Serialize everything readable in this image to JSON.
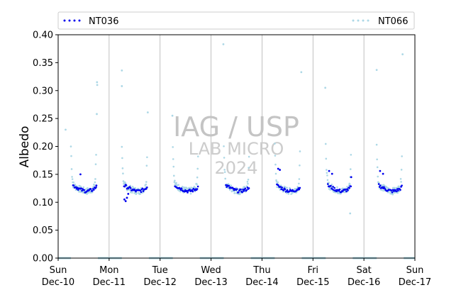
{
  "chart_data": {
    "type": "scatter",
    "ylabel": "Albedo",
    "ylim": [
      0,
      0.4
    ],
    "yticks": [
      0.0,
      0.05,
      0.1,
      0.15,
      0.2,
      0.25,
      0.3,
      0.35,
      0.4
    ],
    "ytick_labels": [
      "0.00",
      "0.05",
      "0.10",
      "0.15",
      "0.20",
      "0.25",
      "0.30",
      "0.35",
      "0.40"
    ],
    "xlim": [
      "2018-12-10",
      "2018-12-17"
    ],
    "xticks": [
      {
        "day": "Sun",
        "date": "Dec-10"
      },
      {
        "day": "Mon",
        "date": "Dec-11"
      },
      {
        "day": "Tue",
        "date": "Dec-12"
      },
      {
        "day": "Wed",
        "date": "Dec-13"
      },
      {
        "day": "Thu",
        "date": "Dec-14"
      },
      {
        "day": "Fri",
        "date": "Dec-15"
      },
      {
        "day": "Sat",
        "date": "Dec-16"
      },
      {
        "day": "Sun",
        "date": "Dec-17"
      }
    ],
    "grid": "vertical at day boundaries",
    "legend": "top, spanning plot width",
    "series": [
      {
        "name": "NT036",
        "color": "#0000ee",
        "daily_profile": [
          {
            "hour": 7.0,
            "albedo": 0.13
          },
          {
            "hour": 8.0,
            "albedo": 0.128
          },
          {
            "hour": 9.0,
            "albedo": 0.126
          },
          {
            "hour": 10.0,
            "albedo": 0.124
          },
          {
            "hour": 11.0,
            "albedo": 0.122
          },
          {
            "hour": 12.0,
            "albedo": 0.121
          },
          {
            "hour": 13.0,
            "albedo": 0.12
          },
          {
            "hour": 14.0,
            "albedo": 0.12
          },
          {
            "hour": 15.0,
            "albedo": 0.121
          },
          {
            "hour": 16.0,
            "albedo": 0.122
          },
          {
            "hour": 17.0,
            "albedo": 0.124
          },
          {
            "hour": 18.0,
            "albedo": 0.128
          }
        ],
        "highlights": [
          {
            "day": 0,
            "hour": 10.5,
            "albedo": 0.15
          },
          {
            "day": 0,
            "hour": 18.0,
            "albedo": 0.13
          },
          {
            "day": 1,
            "hour": 7.2,
            "albedo": 0.105
          },
          {
            "day": 1,
            "hour": 7.8,
            "albedo": 0.102
          },
          {
            "day": 1,
            "hour": 8.4,
            "albedo": 0.108
          },
          {
            "day": 1,
            "hour": 9.0,
            "albedo": 0.115
          },
          {
            "day": 4,
            "hour": 7.6,
            "albedo": 0.16
          },
          {
            "day": 4,
            "hour": 8.4,
            "albedo": 0.158
          },
          {
            "day": 5,
            "hour": 7.6,
            "albedo": 0.156
          },
          {
            "day": 5,
            "hour": 9.0,
            "albedo": 0.151
          },
          {
            "day": 5,
            "hour": 18.0,
            "albedo": 0.145
          },
          {
            "day": 6,
            "hour": 7.6,
            "albedo": 0.156
          },
          {
            "day": 6,
            "hour": 9.0,
            "albedo": 0.151
          }
        ]
      },
      {
        "name": "NT066",
        "color": "#add8e6",
        "daily_profile": [
          {
            "hour": 6.0,
            "albedo": 0.2
          },
          {
            "hour": 6.5,
            "albedo": 0.15
          },
          {
            "hour": 7.0,
            "albedo": 0.132
          },
          {
            "hour": 8.0,
            "albedo": 0.128
          },
          {
            "hour": 9.0,
            "albedo": 0.126
          },
          {
            "hour": 10.0,
            "albedo": 0.124
          },
          {
            "hour": 11.0,
            "albedo": 0.122
          },
          {
            "hour": 12.0,
            "albedo": 0.121
          },
          {
            "hour": 13.0,
            "albedo": 0.12
          },
          {
            "hour": 14.0,
            "albedo": 0.12
          },
          {
            "hour": 15.0,
            "albedo": 0.121
          },
          {
            "hour": 16.0,
            "albedo": 0.123
          },
          {
            "hour": 17.0,
            "albedo": 0.127
          },
          {
            "hour": 17.5,
            "albedo": 0.14
          },
          {
            "hour": 18.0,
            "albedo": 0.2
          }
        ],
        "outliers": [
          {
            "day": 0,
            "hour": 3.5,
            "albedo": 0.23
          },
          {
            "day": 0,
            "hour": 18.3,
            "albedo": 0.315
          },
          {
            "day": 0,
            "hour": 18.4,
            "albedo": 0.31
          },
          {
            "day": 0,
            "hour": 18.2,
            "albedo": 0.258
          },
          {
            "day": 1,
            "hour": 6.0,
            "albedo": 0.336
          },
          {
            "day": 1,
            "hour": 6.0,
            "albedo": 0.308
          },
          {
            "day": 1,
            "hour": 18.2,
            "albedo": 0.261
          },
          {
            "day": 2,
            "hour": 5.8,
            "albedo": 0.255
          },
          {
            "day": 3,
            "hour": 5.8,
            "albedo": 0.383
          },
          {
            "day": 4,
            "hour": 18.5,
            "albedo": 0.333
          },
          {
            "day": 5,
            "hour": 5.8,
            "albedo": 0.305
          },
          {
            "day": 5,
            "hour": 17.5,
            "albedo": 0.08
          },
          {
            "day": 6,
            "hour": 6.0,
            "albedo": 0.337
          },
          {
            "day": 6,
            "hour": 18.2,
            "albedo": 0.365
          }
        ],
        "night_value": 0.0
      }
    ],
    "watermark": {
      "line1": "IAG / USP",
      "line2": "LAB MICRO",
      "line3": "2024"
    }
  }
}
